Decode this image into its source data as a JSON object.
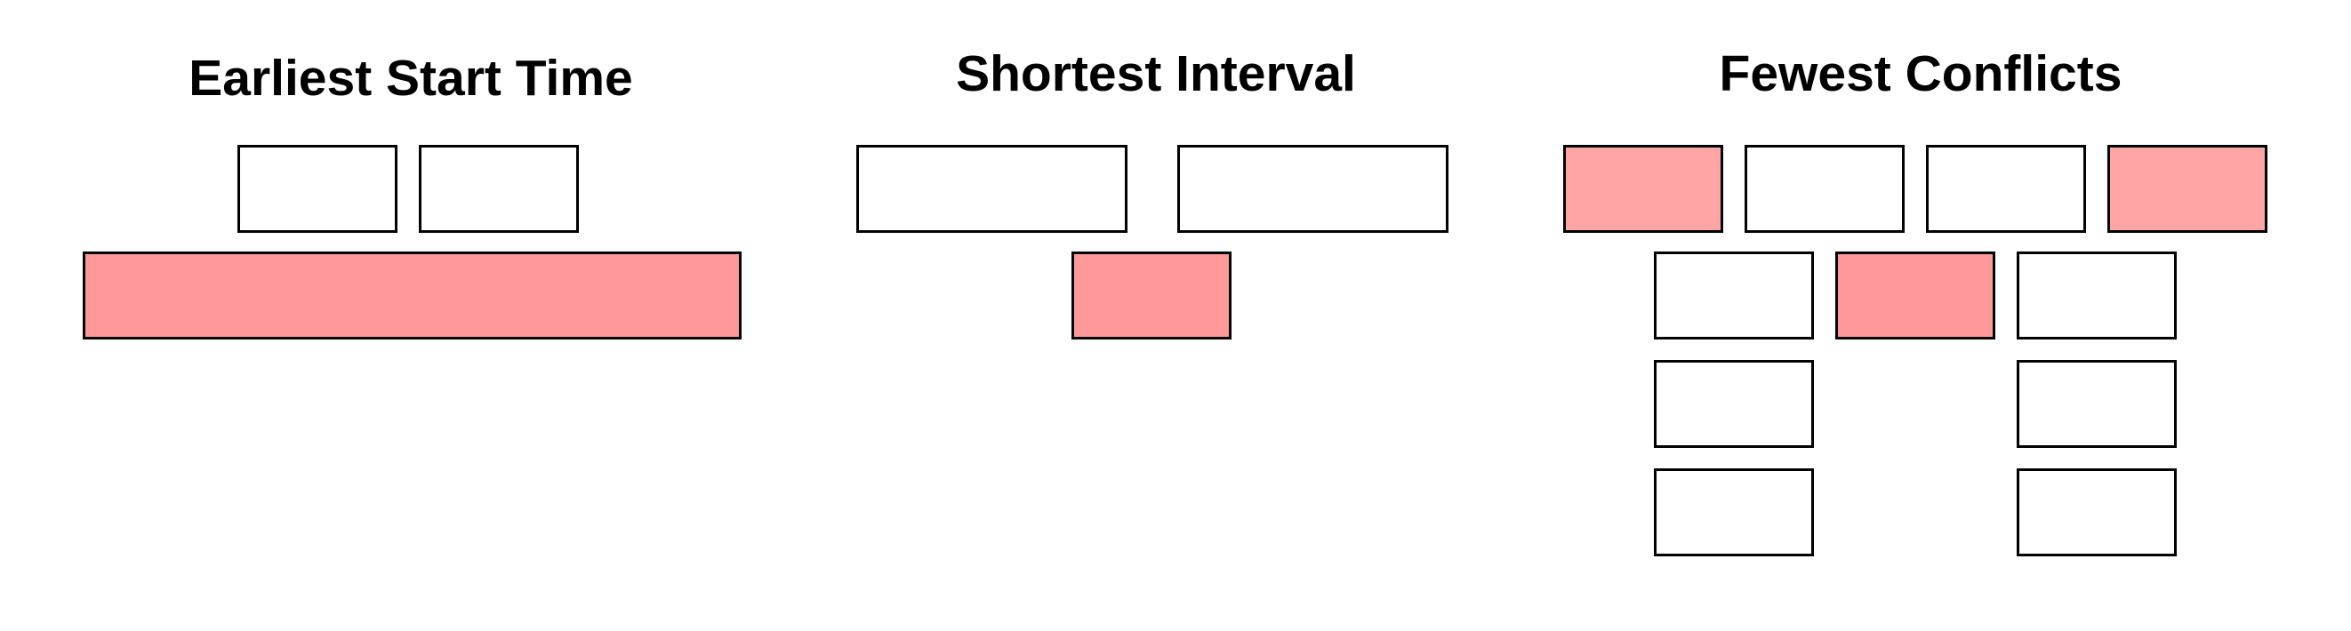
{
  "colors": {
    "selected_fill": "#ff9999",
    "selected_light_fill": "#ffa5a5",
    "unselected_fill": "#ffffff",
    "border": "#000000"
  },
  "panels": [
    {
      "title": "Earliest Start Time",
      "intervals": [
        {
          "state": "unselected"
        },
        {
          "state": "unselected"
        },
        {
          "state": "selected"
        }
      ]
    },
    {
      "title": "Shortest Interval",
      "intervals": [
        {
          "state": "unselected"
        },
        {
          "state": "unselected"
        },
        {
          "state": "selected"
        }
      ]
    },
    {
      "title": "Fewest Conflicts",
      "intervals": [
        {
          "state": "selected-light"
        },
        {
          "state": "unselected"
        },
        {
          "state": "unselected"
        },
        {
          "state": "selected-light"
        },
        {
          "state": "unselected"
        },
        {
          "state": "selected"
        },
        {
          "state": "unselected"
        },
        {
          "state": "unselected"
        },
        {
          "state": "unselected"
        },
        {
          "state": "unselected"
        },
        {
          "state": "unselected"
        }
      ]
    }
  ]
}
